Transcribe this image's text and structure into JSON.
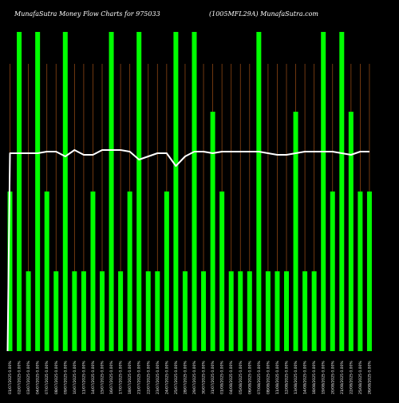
{
  "header": {
    "title_left": "MunafaSutra  Money Flow  Charts for 975033",
    "title_right": "(1005MFL29A) MunafaSutra.com"
  },
  "chart_data": {
    "type": "bar",
    "title": "MunafaSutra  Money Flow  Charts for 975033 (1005MFL29A) MunafaSutra.com",
    "ylim": [
      0,
      100
    ],
    "grid": false,
    "colors": {
      "bar": "#00ff00",
      "line": "#ffffff",
      "vertical_rule": "#8b4513",
      "background": "#000000"
    },
    "categories": [
      "01 Fri Jul 2025",
      "02 Wed Jul 2025",
      "03 Thu Jul 2025",
      "04 Fri Jul 2025",
      "07 Mon Jul 2025",
      "08 Tue Jul 2025",
      "09 Wed Jul 2025",
      "10 Thu Jul 2025",
      "11 Fri Jul 2025",
      "14 Mon Jul 2025",
      "15 Tue Jul 2025",
      "16 Wed Jul 2025",
      "17 Thu Jul 2025",
      "18 Fri Jul 2025",
      "21 Mon Jul 2025",
      "22 Tue Jul 2025",
      "23 Wed Jul 2025",
      "24 Thu Jul 2025",
      "25 Fri Jul 2025",
      "28 Mon Jul 2025",
      "29 Tue Jul 2025",
      "30 Wed Jul 2025",
      "31 Thu Jul 2025",
      "01 Fri Aug 2025",
      "04 Mon Aug 2025",
      "05 Tue Aug 2025",
      "06 Wed Aug 2025",
      "07 Thu Aug 2025",
      "08 Fri Aug 2025",
      "11 Mon Aug 2025",
      "12 Tue Aug 2025",
      "13 Wed Aug 2025",
      "14 Thu Aug 2025",
      "18 Mon Aug 2025",
      "19 Tue Aug 2025",
      "20 Wed Aug 2025",
      "21 Thu Aug 2025",
      "22 Fri Aug 2025",
      "25 Mon Aug 2025",
      "26 Tue Aug 2025"
    ],
    "tick_labels": [
      "01/07/2025 0.00%",
      "02/07/2025 0.00%",
      "03/07/2025 0.00%",
      "04/07/2025 0.00%",
      "07/07/2025 0.00%",
      "08/07/2025 0.00%",
      "09/07/2025 0.00%",
      "10/07/2025 0.00%",
      "11/07/2025 0.00%",
      "14/07/2025 0.00%",
      "15/07/2025 0.00%",
      "16/07/2025 0.00%",
      "17/07/2025 0.00%",
      "18/07/2025 0.00%",
      "21/07/2025 0.00%",
      "22/07/2025 0.00%",
      "23/07/2025 0.00%",
      "24/07/2025 0.00%",
      "25/07/2025 0.00%",
      "28/07/2025 0.00%",
      "29/07/2025 0.00%",
      "30/07/2025 0.00%",
      "31/07/2025 0.00%",
      "01/08/2025 0.00%",
      "04/08/2025 0.00%",
      "05/08/2025 0.00%",
      "06/08/2025 0.00%",
      "07/08/2025 0.00%",
      "08/08/2025 0.00%",
      "11/08/2025 0.00%",
      "12/08/2025 0.00%",
      "13/08/2025 0.00%",
      "14/08/2025 0.00%",
      "18/08/2025 0.00%",
      "19/08/2025 0.00%",
      "20/08/2025 0.00%",
      "21/08/2025 0.00%",
      "22/08/2025 0.00%",
      "25/08/2025 0.00%",
      "26/08/2025 0.00%"
    ],
    "series": [
      {
        "type": "bar",
        "values": [
          50,
          100,
          25,
          100,
          50,
          25,
          100,
          25,
          25,
          50,
          25,
          100,
          25,
          50,
          100,
          25,
          25,
          50,
          100,
          25,
          100,
          25,
          75,
          50,
          25,
          25,
          25,
          100,
          25,
          25,
          25,
          75,
          25,
          25,
          100,
          50,
          100,
          75,
          50,
          50
        ]
      },
      {
        "type": "line",
        "values": [
          62,
          62,
          62,
          62,
          62.5,
          62.5,
          61,
          63,
          61.5,
          61.5,
          63,
          63,
          63,
          62.5,
          60,
          61,
          62,
          62,
          58,
          61,
          62.5,
          62.5,
          62,
          62.5,
          62.5,
          62.5,
          62.5,
          62.5,
          62,
          61.5,
          61.5,
          62,
          62.5,
          62.5,
          62.5,
          62.5,
          62,
          61.5,
          62.5,
          62.5
        ]
      }
    ]
  }
}
